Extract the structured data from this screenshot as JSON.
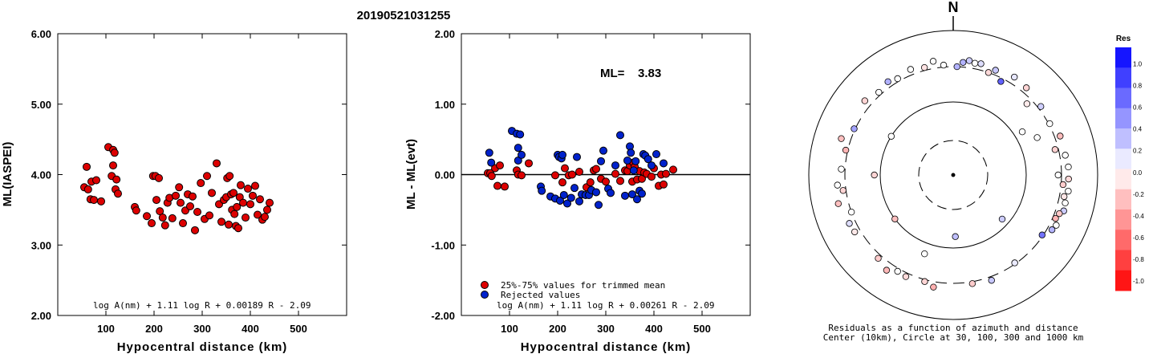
{
  "event_id": "20190521031255",
  "chart_data": [
    {
      "type": "scatter",
      "ylabel": "ML(IASPEI)",
      "xlabel": "Hypocentral distance (km)",
      "xlim": [
        0,
        600
      ],
      "ylim": [
        2.0,
        6.0
      ],
      "xticks": [
        "100",
        "200",
        "300",
        "400",
        "500"
      ],
      "yticks": [
        "2.00",
        "3.00",
        "4.00",
        "5.00",
        "6.00"
      ],
      "formula": "log A(nm) + 1.11 log R + 0.00189 R - 2.09",
      "series": [
        {
          "color": "#dd0000",
          "points": [
            [
              55,
              3.82
            ],
            [
              60,
              4.11
            ],
            [
              63,
              3.79
            ],
            [
              68,
              3.65
            ],
            [
              70,
              3.9
            ],
            [
              75,
              3.64
            ],
            [
              80,
              3.92
            ],
            [
              90,
              3.62
            ],
            [
              105,
              4.39
            ],
            [
              115,
              4.35
            ],
            [
              118,
              4.31
            ],
            [
              115,
              4.13
            ],
            [
              112,
              3.98
            ],
            [
              122,
              3.93
            ],
            [
              120,
              3.79
            ],
            [
              125,
              3.73
            ],
            [
              160,
              3.54
            ],
            [
              163,
              3.49
            ],
            [
              185,
              3.41
            ],
            [
              195,
              3.31
            ],
            [
              198,
              3.98
            ],
            [
              203,
              3.98
            ],
            [
              205,
              3.64
            ],
            [
              210,
              3.95
            ],
            [
              212,
              3.48
            ],
            [
              218,
              3.39
            ],
            [
              223,
              3.28
            ],
            [
              228,
              3.6
            ],
            [
              232,
              3.67
            ],
            [
              238,
              3.38
            ],
            [
              245,
              3.7
            ],
            [
              252,
              3.82
            ],
            [
              255,
              3.6
            ],
            [
              260,
              3.31
            ],
            [
              265,
              3.49
            ],
            [
              270,
              3.72
            ],
            [
              275,
              3.55
            ],
            [
              280,
              3.69
            ],
            [
              285,
              3.21
            ],
            [
              290,
              3.47
            ],
            [
              297,
              3.88
            ],
            [
              305,
              3.37
            ],
            [
              310,
              3.98
            ],
            [
              315,
              3.42
            ],
            [
              320,
              3.74
            ],
            [
              330,
              4.16
            ],
            [
              335,
              3.58
            ],
            [
              340,
              3.33
            ],
            [
              345,
              3.64
            ],
            [
              350,
              3.68
            ],
            [
              352,
              3.95
            ],
            [
              355,
              3.29
            ],
            [
              357,
              3.98
            ],
            [
              360,
              3.72
            ],
            [
              362,
              3.5
            ],
            [
              365,
              3.74
            ],
            [
              367,
              3.44
            ],
            [
              370,
              3.27
            ],
            [
              372,
              3.54
            ],
            [
              375,
              3.24
            ],
            [
              378,
              3.68
            ],
            [
              380,
              3.85
            ],
            [
              385,
              3.6
            ],
            [
              390,
              3.39
            ],
            [
              395,
              3.8
            ],
            [
              400,
              3.58
            ],
            [
              405,
              3.7
            ],
            [
              410,
              3.84
            ],
            [
              415,
              3.43
            ],
            [
              420,
              3.65
            ],
            [
              425,
              3.36
            ],
            [
              430,
              3.4
            ],
            [
              435,
              3.5
            ],
            [
              440,
              3.6
            ]
          ]
        }
      ]
    },
    {
      "type": "scatter",
      "ylabel": "ML - ML(evt)",
      "xlabel": "Hypocentral distance (km)",
      "xlim": [
        0,
        600
      ],
      "ylim": [
        -2.0,
        2.0
      ],
      "xticks": [
        "100",
        "200",
        "300",
        "400",
        "500"
      ],
      "yticks": [
        "-2.00",
        "-1.00",
        "0.00",
        "1.00",
        "2.00"
      ],
      "ml_label": "ML=",
      "ml_value": "3.83",
      "formula": "log A(nm) + 1.11 log R + 0.00261 R - 2.09",
      "legend": {
        "position": "bottom-left"
      },
      "series": [
        {
          "name": "25%-75% values for trimmed mean",
          "color": "#dd0000",
          "points": [
            [
              55,
              0.02
            ],
            [
              60,
              0.02
            ],
            [
              63,
              -0.02
            ],
            [
              70,
              0.09
            ],
            [
              75,
              -0.16
            ],
            [
              80,
              0.13
            ],
            [
              90,
              -0.17
            ],
            [
              115,
              0.06
            ],
            [
              118,
              0.0
            ],
            [
              125,
              -0.01
            ],
            [
              140,
              0.16
            ],
            [
              195,
              -0.01
            ],
            [
              210,
              -0.11
            ],
            [
              215,
              0.09
            ],
            [
              223,
              -0.01
            ],
            [
              230,
              0.0
            ],
            [
              245,
              0.04
            ],
            [
              260,
              -0.18
            ],
            [
              268,
              -0.11
            ],
            [
              275,
              0.06
            ],
            [
              280,
              0.08
            ],
            [
              290,
              -0.06
            ],
            [
              300,
              -0.1
            ],
            [
              320,
              0.01
            ],
            [
              330,
              -0.09
            ],
            [
              340,
              0.06
            ],
            [
              345,
              0.05
            ],
            [
              350,
              0.13
            ],
            [
              355,
              -0.1
            ],
            [
              357,
              0.17
            ],
            [
              360,
              0.11
            ],
            [
              365,
              -0.07
            ],
            [
              370,
              0.05
            ],
            [
              375,
              -0.06
            ],
            [
              380,
              0.03
            ],
            [
              385,
              0.01
            ],
            [
              395,
              -0.03
            ],
            [
              400,
              0.09
            ],
            [
              410,
              -0.16
            ],
            [
              415,
              0.0
            ],
            [
              420,
              -0.14
            ],
            [
              425,
              0.01
            ],
            [
              440,
              0.07
            ]
          ]
        },
        {
          "name": "Rejected values",
          "color": "#0022cc",
          "points": [
            [
              58,
              0.31
            ],
            [
              62,
              0.17
            ],
            [
              105,
              0.62
            ],
            [
              115,
              0.58
            ],
            [
              118,
              0.38
            ],
            [
              118,
              0.2
            ],
            [
              122,
              0.57
            ],
            [
              125,
              0.28
            ],
            [
              165,
              -0.17
            ],
            [
              167,
              -0.23
            ],
            [
              185,
              -0.31
            ],
            [
              195,
              -0.34
            ],
            [
              200,
              0.28
            ],
            [
              203,
              0.25
            ],
            [
              205,
              -0.37
            ],
            [
              208,
              0.23
            ],
            [
              210,
              0.28
            ],
            [
              213,
              -0.29
            ],
            [
              220,
              -0.41
            ],
            [
              228,
              -0.33
            ],
            [
              235,
              -0.19
            ],
            [
              240,
              0.25
            ],
            [
              245,
              -0.38
            ],
            [
              250,
              -0.28
            ],
            [
              258,
              -0.29
            ],
            [
              265,
              -0.29
            ],
            [
              270,
              -0.22
            ],
            [
              280,
              -0.25
            ],
            [
              285,
              -0.43
            ],
            [
              290,
              0.19
            ],
            [
              295,
              0.34
            ],
            [
              305,
              -0.2
            ],
            [
              310,
              -0.26
            ],
            [
              320,
              0.13
            ],
            [
              330,
              0.56
            ],
            [
              340,
              -0.3
            ],
            [
              345,
              0.2
            ],
            [
              350,
              0.4
            ],
            [
              352,
              0.31
            ],
            [
              355,
              -0.28
            ],
            [
              358,
              0.06
            ],
            [
              362,
              0.19
            ],
            [
              365,
              -0.35
            ],
            [
              370,
              -0.23
            ],
            [
              375,
              -0.27
            ],
            [
              378,
              0.29
            ],
            [
              382,
              0.27
            ],
            [
              388,
              0.22
            ],
            [
              395,
              0.13
            ],
            [
              405,
              0.29
            ],
            [
              420,
              0.16
            ]
          ]
        }
      ]
    },
    {
      "type": "polar-scatter",
      "north_label": "N",
      "caption_line1": "Residuals as a function of azimuth and distance",
      "caption_line2": "Center (10km), Circle at 30, 100, 300 and 1000 km",
      "colorbar": {
        "title": "Res",
        "min": -1.0,
        "max": 1.0,
        "negative_color": "#ff0000",
        "positive_color": "#0000ff",
        "tick_labels": [
          "1.0",
          "0.8",
          "0.6",
          "0.4",
          "0.2",
          "0.0",
          "-0.2",
          "-0.4",
          "-0.6",
          "-0.8",
          "-1.0"
        ]
      },
      "points": [
        {
          "az": 2,
          "dist": 300,
          "res": 0.3
        },
        {
          "az": 5,
          "dist": 350,
          "res": 0.3
        },
        {
          "az": 8,
          "dist": 380,
          "res": 0.2
        },
        {
          "az": 11,
          "dist": 360,
          "res": 0.06
        },
        {
          "az": 14,
          "dist": 370,
          "res": 0.13
        },
        {
          "az": 19,
          "dist": 300,
          "res": -0.15
        },
        {
          "az": 22,
          "dist": 350,
          "res": 0.22
        },
        {
          "az": 27,
          "dist": 270,
          "res": 0.62
        },
        {
          "az": 32,
          "dist": 380,
          "res": 0.1
        },
        {
          "az": 40,
          "dist": 360,
          "res": -0.17
        },
        {
          "az": 46,
          "dist": 250,
          "res": -0.08
        },
        {
          "az": 52,
          "dist": 330,
          "res": 0.19
        },
        {
          "az": 58,
          "dist": 130,
          "res": 0.0
        },
        {
          "az": 62,
          "dist": 310,
          "res": 0.02
        },
        {
          "az": 66,
          "dist": 180,
          "res": -0.02
        },
        {
          "az": 70,
          "dist": 360,
          "res": -0.26
        },
        {
          "az": 76,
          "dist": 270,
          "res": -0.18
        },
        {
          "az": 80,
          "dist": 360,
          "res": -0.07
        },
        {
          "az": 86,
          "dist": 380,
          "res": 0.03
        },
        {
          "az": 90,
          "dist": 270,
          "res": 0.0
        },
        {
          "az": 92,
          "dist": 380,
          "res": -0.15
        },
        {
          "az": 95,
          "dist": 320,
          "res": -0.2
        },
        {
          "az": 98,
          "dist": 390,
          "res": 0.05
        },
        {
          "az": 101,
          "dist": 350,
          "res": -0.1
        },
        {
          "az": 104,
          "dist": 380,
          "res": 0.03
        },
        {
          "az": 108,
          "dist": 390,
          "res": 0.2
        },
        {
          "az": 110,
          "dist": 350,
          "res": -0.22
        },
        {
          "az": 113,
          "dist": 330,
          "res": -0.3
        },
        {
          "az": 116,
          "dist": 370,
          "res": 0.03
        },
        {
          "az": 119,
          "dist": 350,
          "res": 0.29
        },
        {
          "az": 124,
          "dist": 290,
          "res": 0.55
        },
        {
          "az": 132,
          "dist": 80,
          "res": 0.2
        },
        {
          "az": 145,
          "dist": 290,
          "res": 0.08
        },
        {
          "az": 160,
          "dist": 340,
          "res": 0.22
        },
        {
          "az": 170,
          "dist": 320,
          "res": -0.2
        },
        {
          "az": 178,
          "dist": 70,
          "res": 0.25
        },
        {
          "az": 190,
          "dist": 360,
          "res": -0.31
        },
        {
          "az": 195,
          "dist": 320,
          "res": -0.17
        },
        {
          "az": 200,
          "dist": 140,
          "res": 0.0
        },
        {
          "az": 205,
          "dist": 340,
          "res": -0.15
        },
        {
          "az": 210,
          "dist": 330,
          "res": 0.0
        },
        {
          "az": 215,
          "dist": 390,
          "res": -0.28
        },
        {
          "az": 222,
          "dist": 340,
          "res": -0.2
        },
        {
          "az": 233,
          "dist": 100,
          "res": -0.25
        },
        {
          "az": 240,
          "dist": 360,
          "res": -0.09
        },
        {
          "az": 245,
          "dist": 370,
          "res": 0.13
        },
        {
          "az": 250,
          "dist": 300,
          "res": 0.0
        },
        {
          "az": 256,
          "dist": 420,
          "res": -0.25
        },
        {
          "az": 262,
          "dist": 330,
          "res": -0.17
        },
        {
          "az": 265,
          "dist": 390,
          "res": 0.0
        },
        {
          "az": 270,
          "dist": 120,
          "res": -0.17
        },
        {
          "az": 273,
          "dist": 340,
          "res": 0.0
        },
        {
          "az": 283,
          "dist": 320,
          "res": -0.3
        },
        {
          "az": 288,
          "dist": 410,
          "res": -0.25
        },
        {
          "az": 295,
          "dist": 310,
          "res": 0.36
        },
        {
          "az": 302,
          "dist": 100,
          "res": 0.0
        },
        {
          "az": 310,
          "dist": 380,
          "res": -0.17
        },
        {
          "az": 318,
          "dist": 330,
          "res": 0.0
        },
        {
          "az": 325,
          "dist": 360,
          "res": 0.31
        },
        {
          "az": 330,
          "dist": 330,
          "res": -0.02
        },
        {
          "az": 338,
          "dist": 360,
          "res": 0.0
        },
        {
          "az": 345,
          "dist": 330,
          "res": -0.11
        },
        {
          "az": 350,
          "dist": 380,
          "res": 0.0
        },
        {
          "az": 355,
          "dist": 320,
          "res": 0.0
        }
      ]
    }
  ]
}
